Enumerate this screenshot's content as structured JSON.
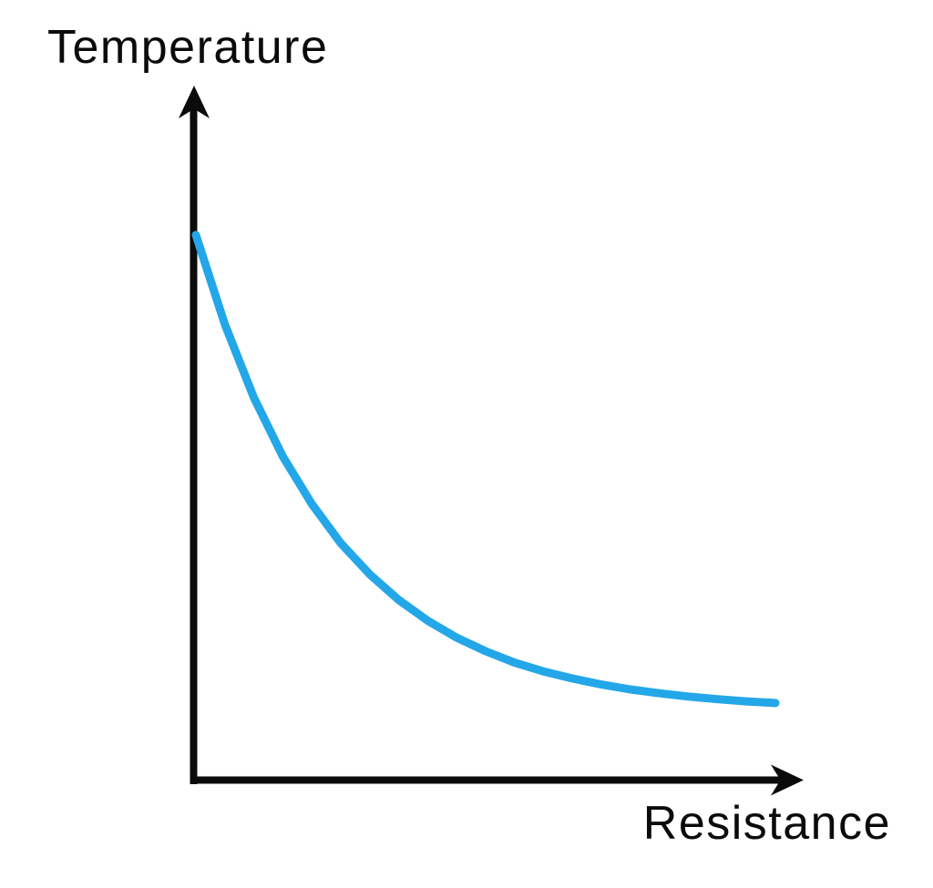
{
  "colors": {
    "axis": "#0b0b0b",
    "curve": "#24a7e8",
    "text": "#0b0b0b",
    "background": "#ffffff"
  },
  "chart_data": {
    "type": "line",
    "title": "",
    "xlabel": "Resistance",
    "ylabel": "Temperature",
    "legend": false,
    "grid": false,
    "x_axis": {
      "min": 0,
      "max": 1,
      "ticks": [],
      "arrowhead": true
    },
    "y_axis": {
      "min": 0,
      "max": 100,
      "ticks": [],
      "arrowhead": true
    },
    "description": "Qualitative inverse exponential relationship: temperature decreases steeply at low resistance and levels off toward an asymptote as resistance increases.",
    "series": [
      {
        "name": "temperature-vs-resistance",
        "color": "#24a7e8",
        "x": [
          0,
          0.05,
          0.1,
          0.15,
          0.2,
          0.25,
          0.3,
          0.35,
          0.4,
          0.45,
          0.5,
          0.55,
          0.6,
          0.65,
          0.7,
          0.75,
          0.8,
          0.85,
          0.9,
          0.95,
          1.0
        ],
        "y": [
          100,
          83.6,
          70.2,
          59.4,
          50.7,
          43.5,
          37.8,
          33.1,
          29.3,
          26.2,
          23.7,
          21.6,
          20.0,
          18.7,
          17.6,
          16.7,
          16.0,
          15.4,
          14.9,
          14.5,
          14.2
        ]
      }
    ]
  }
}
